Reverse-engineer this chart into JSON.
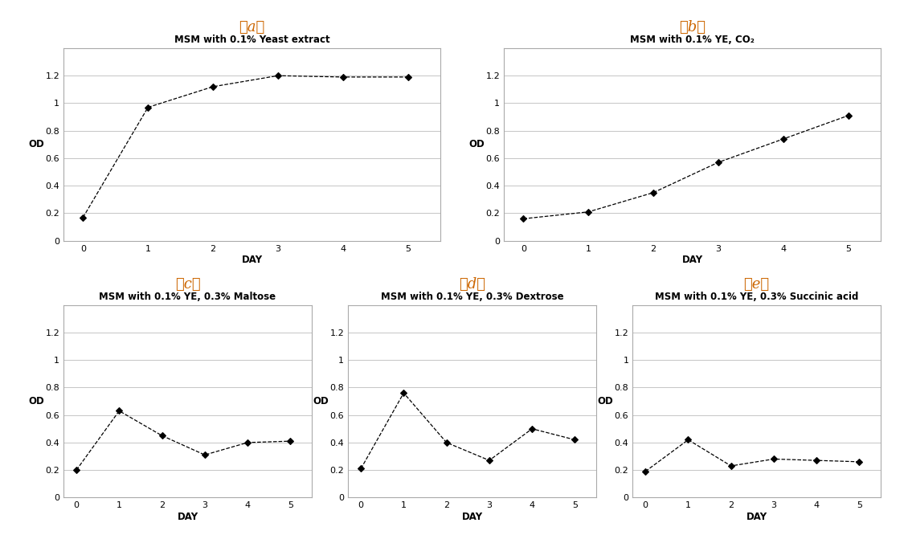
{
  "panel_a": {
    "title": "MSM with 0.1% Yeast extract",
    "x": [
      0,
      1,
      2,
      3,
      4,
      5
    ],
    "y": [
      0.17,
      0.97,
      1.12,
      1.2,
      1.19,
      1.19
    ],
    "ylabel": "OD",
    "xlabel": "DAY",
    "ylim": [
      0,
      1.4
    ],
    "yticks": [
      0,
      0.2,
      0.4,
      0.6,
      0.8,
      1,
      1.2
    ],
    "xticks": [
      0,
      1,
      2,
      3,
      4,
      5
    ]
  },
  "panel_b": {
    "title": "MSM with 0.1% YE, CO₂",
    "x": [
      0,
      1,
      2,
      3,
      4,
      5
    ],
    "y": [
      0.16,
      0.21,
      0.35,
      0.57,
      0.74,
      0.91
    ],
    "ylabel": "OD",
    "xlabel": "DAY",
    "ylim": [
      0,
      1.4
    ],
    "yticks": [
      0,
      0.2,
      0.4,
      0.6,
      0.8,
      1,
      1.2
    ],
    "xticks": [
      0,
      1,
      2,
      3,
      4,
      5
    ]
  },
  "panel_c": {
    "title": "MSM with 0.1% YE, 0.3% Maltose",
    "x": [
      0,
      1,
      2,
      3,
      4,
      5
    ],
    "y": [
      0.2,
      0.63,
      0.45,
      0.31,
      0.4,
      0.41
    ],
    "ylabel": "OD",
    "xlabel": "DAY",
    "ylim": [
      0,
      1.4
    ],
    "yticks": [
      0,
      0.2,
      0.4,
      0.6,
      0.8,
      1,
      1.2
    ],
    "xticks": [
      0,
      1,
      2,
      3,
      4,
      5
    ]
  },
  "panel_d": {
    "title": "MSM with 0.1% YE, 0.3% Dextrose",
    "x": [
      0,
      1,
      2,
      3,
      4,
      5
    ],
    "y": [
      0.21,
      0.76,
      0.4,
      0.27,
      0.5,
      0.42
    ],
    "ylabel": "OD",
    "xlabel": "DAY",
    "ylim": [
      0,
      1.4
    ],
    "yticks": [
      0,
      0.2,
      0.4,
      0.6,
      0.8,
      1,
      1.2
    ],
    "xticks": [
      0,
      1,
      2,
      3,
      4,
      5
    ]
  },
  "panel_e": {
    "title": "MSM with 0.1% YE, 0.3% Succinic acid",
    "x": [
      0,
      1,
      2,
      3,
      4,
      5
    ],
    "y": [
      0.19,
      0.42,
      0.23,
      0.28,
      0.27,
      0.26
    ],
    "ylabel": "OD",
    "xlabel": "DAY",
    "ylim": [
      0,
      1.4
    ],
    "yticks": [
      0,
      0.2,
      0.4,
      0.6,
      0.8,
      1,
      1.2
    ],
    "xticks": [
      0,
      1,
      2,
      3,
      4,
      5
    ]
  },
  "label_color": "#000000",
  "line_color": "#000000",
  "marker": "D",
  "marker_size": 4,
  "linestyle": "--",
  "bg_color": "#ffffff",
  "panel_labels": [
    "（a）",
    "（b）",
    "（c）",
    "（d）",
    "（e）"
  ],
  "panel_label_color": "#cc6600",
  "grid_color": "#bbbbbb",
  "spine_color": "#aaaaaa"
}
